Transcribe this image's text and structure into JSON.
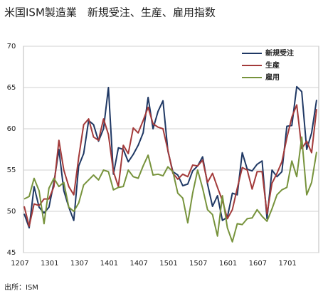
{
  "chart_data": {
    "type": "line",
    "title": "米国ISM製造業　新規受注、生産、雇用指数",
    "source": "出所：ISM",
    "categories": [
      "1207",
      null,
      null,
      null,
      null,
      null,
      "1301",
      null,
      null,
      null,
      null,
      null,
      "1307",
      null,
      null,
      null,
      null,
      null,
      "1401",
      null,
      null,
      null,
      null,
      null,
      "1407",
      null,
      null,
      null,
      null,
      null,
      "1501",
      null,
      null,
      null,
      null,
      null,
      "1507",
      null,
      null,
      null,
      null,
      null,
      "1601",
      null,
      null,
      null,
      null,
      null,
      "1607",
      null,
      null,
      null,
      null,
      null,
      "1701",
      null,
      null,
      null,
      null,
      null
    ],
    "series": [
      {
        "name": "新規受注",
        "color": "#1f3864",
        "values": [
          49.7,
          48.0,
          53.0,
          50.5,
          49.8,
          50.5,
          53.5,
          57.5,
          52.5,
          50.5,
          48.9,
          55.5,
          57.0,
          61.0,
          60.5,
          58.5,
          60.0,
          65.0,
          54.5,
          57.7,
          57.5,
          56.0,
          56.9,
          58.0,
          59.5,
          63.8,
          60.0,
          62.1,
          63.4,
          57.3,
          54.8,
          54.4,
          53.1,
          53.3,
          54.9,
          55.5,
          56.6,
          53.3,
          50.6,
          51.9,
          48.9,
          49.3,
          52.2,
          52.0,
          57.1,
          55.1,
          54.9,
          55.7,
          56.1,
          49.1,
          55.0,
          54.2,
          54.8,
          60.3,
          60.4,
          65.1,
          64.5,
          57.5,
          59.5,
          63.5
        ]
      },
      {
        "name": "生産",
        "color": "#a33a3a",
        "values": [
          50.6,
          48.2,
          50.9,
          50.7,
          51.5,
          51.5,
          53.0,
          58.6,
          55.0,
          53.0,
          52.0,
          56.5,
          60.5,
          61.2,
          59.0,
          58.6,
          61.2,
          59.3,
          54.8,
          53.0,
          58.0,
          57.0,
          60.1,
          59.5,
          61.0,
          62.6,
          60.6,
          60.2,
          60.0,
          57.4,
          54.6,
          53.9,
          54.5,
          54.2,
          55.6,
          55.5,
          56.2,
          53.5,
          54.6,
          52.9,
          51.3,
          49.1,
          50.2,
          52.8,
          55.3,
          55.0,
          52.7,
          54.8,
          54.8,
          49.7,
          53.4,
          54.6,
          56.0,
          58.9,
          61.4,
          62.9,
          57.6,
          58.5,
          57.1,
          62.4
        ]
      },
      {
        "name": "雇用",
        "color": "#77933c",
        "values": [
          51.5,
          51.8,
          54.0,
          52.5,
          48.5,
          52.8,
          54.0,
          53.0,
          53.5,
          50.5,
          50.0,
          51.0,
          53.2,
          53.8,
          54.4,
          53.8,
          55.0,
          54.8,
          52.6,
          52.9,
          53.0,
          55.0,
          54.2,
          54.0,
          55.5,
          56.8,
          54.4,
          54.5,
          54.3,
          55.4,
          54.8,
          52.2,
          51.6,
          48.6,
          52.2,
          55.0,
          52.8,
          50.2,
          49.6,
          47.0,
          51.9,
          48.0,
          46.3,
          48.5,
          48.4,
          49.1,
          49.2,
          50.2,
          49.4,
          48.8,
          50.3,
          52.0,
          52.6,
          52.9,
          56.1,
          54.2,
          59.0,
          52.0,
          53.5,
          57.2
        ]
      }
    ],
    "ylim": [
      45,
      70
    ],
    "yticks": [
      45,
      50,
      55,
      60,
      65,
      70
    ],
    "grid": true,
    "legend": "upper right"
  }
}
